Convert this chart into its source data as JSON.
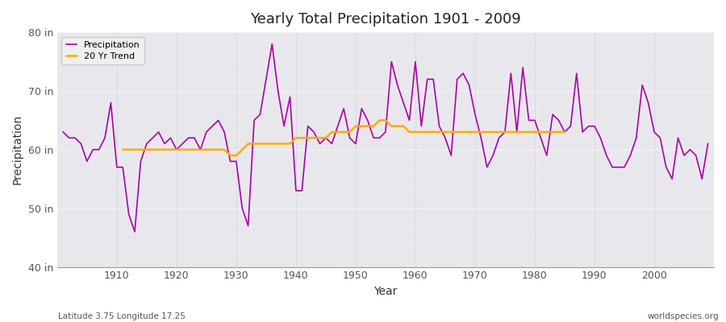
{
  "title": "Yearly Total Precipitation 1901 - 2009",
  "xlabel": "Year",
  "ylabel": "Precipitation",
  "footnote_left": "Latitude 3.75 Longitude 17.25",
  "footnote_right": "worldspecies.org",
  "ylim": [
    40,
    80
  ],
  "yticks": [
    40,
    50,
    60,
    70,
    80
  ],
  "ytick_labels": [
    "40 in",
    "50 in",
    "60 in",
    "70 in",
    "80 in"
  ],
  "fig_bg_color": "#ffffff",
  "plot_bg_color": "#e8e8ec",
  "precip_color": "#aa00aa",
  "trend_color": "#ffaa00",
  "years": [
    1901,
    1902,
    1903,
    1904,
    1905,
    1906,
    1907,
    1908,
    1909,
    1910,
    1911,
    1912,
    1913,
    1914,
    1915,
    1916,
    1917,
    1918,
    1919,
    1920,
    1921,
    1922,
    1923,
    1924,
    1925,
    1926,
    1927,
    1928,
    1929,
    1930,
    1931,
    1932,
    1933,
    1934,
    1935,
    1936,
    1937,
    1938,
    1939,
    1940,
    1941,
    1942,
    1943,
    1944,
    1945,
    1946,
    1947,
    1948,
    1949,
    1950,
    1951,
    1952,
    1953,
    1954,
    1955,
    1956,
    1957,
    1958,
    1959,
    1960,
    1961,
    1962,
    1963,
    1964,
    1965,
    1966,
    1967,
    1968,
    1969,
    1970,
    1971,
    1972,
    1973,
    1974,
    1975,
    1976,
    1977,
    1978,
    1979,
    1980,
    1981,
    1982,
    1983,
    1984,
    1985,
    1986,
    1987,
    1988,
    1989,
    1990,
    1991,
    1992,
    1993,
    1994,
    1995,
    1996,
    1997,
    1998,
    1999,
    2000,
    2001,
    2002,
    2003,
    2004,
    2005,
    2006,
    2007,
    2008,
    2009
  ],
  "precip": [
    63,
    62,
    62,
    61,
    58,
    60,
    60,
    62,
    68,
    57,
    57,
    49,
    46,
    58,
    61,
    62,
    63,
    61,
    62,
    60,
    61,
    62,
    62,
    60,
    63,
    64,
    65,
    63,
    58,
    58,
    50,
    47,
    65,
    66,
    72,
    78,
    70,
    64,
    69,
    53,
    53,
    64,
    63,
    61,
    62,
    61,
    64,
    67,
    62,
    61,
    67,
    65,
    62,
    62,
    63,
    75,
    71,
    68,
    65,
    75,
    64,
    72,
    72,
    64,
    62,
    59,
    72,
    73,
    71,
    66,
    62,
    57,
    59,
    62,
    63,
    73,
    63,
    74,
    65,
    65,
    62,
    59,
    66,
    65,
    63,
    64,
    73,
    63,
    64,
    64,
    62,
    59,
    57,
    57,
    57,
    59,
    62,
    71,
    68,
    63,
    62,
    57,
    55,
    62,
    59,
    60,
    59,
    55,
    61
  ],
  "trend_years": [
    1911,
    1912,
    1913,
    1914,
    1915,
    1916,
    1917,
    1918,
    1919,
    1920,
    1921,
    1922,
    1923,
    1924,
    1925,
    1926,
    1927,
    1928,
    1929,
    1930,
    1931,
    1932,
    1933,
    1934,
    1935,
    1936,
    1937,
    1938,
    1939,
    1940,
    1941,
    1942,
    1943,
    1944,
    1945,
    1946,
    1947,
    1948,
    1949,
    1950,
    1951,
    1952,
    1953,
    1954,
    1955,
    1956,
    1957,
    1958,
    1959,
    1960,
    1961,
    1962,
    1963,
    1964,
    1965,
    1966,
    1967,
    1968,
    1969,
    1970,
    1971,
    1972,
    1973,
    1974,
    1975,
    1976,
    1977,
    1978,
    1979,
    1980,
    1981,
    1982,
    1983,
    1984,
    1985
  ],
  "trend": [
    60,
    60,
    60,
    60,
    60,
    60,
    60,
    60,
    60,
    60,
    60,
    60,
    60,
    60,
    60,
    60,
    60,
    60,
    59,
    59,
    60,
    61,
    61,
    61,
    61,
    61,
    61,
    61,
    61,
    62,
    62,
    62,
    62,
    62,
    62,
    63,
    63,
    63,
    63,
    64,
    64,
    64,
    64,
    65,
    65,
    64,
    64,
    64,
    63,
    63,
    63,
    63,
    63,
    63,
    63,
    63,
    63,
    63,
    63,
    63,
    63,
    63,
    63,
    63,
    63,
    63,
    63,
    63,
    63,
    63,
    63,
    63,
    63,
    63,
    63
  ]
}
